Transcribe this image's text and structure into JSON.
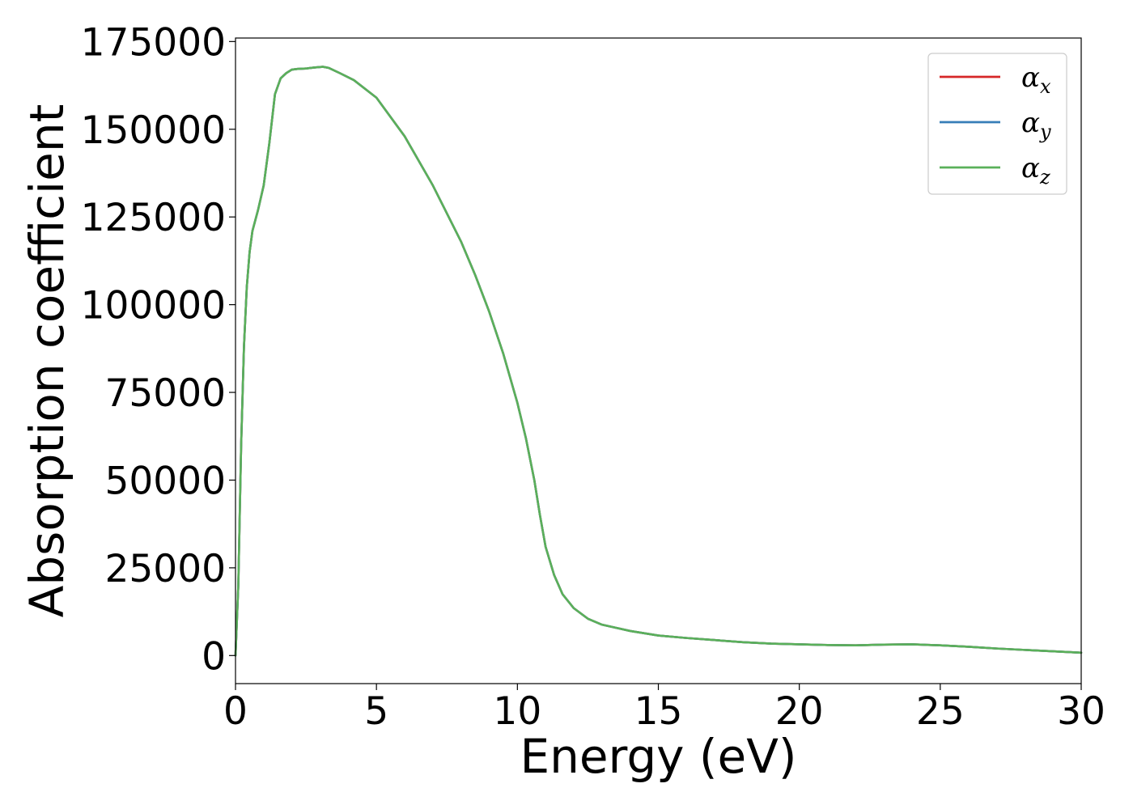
{
  "chart_data": {
    "type": "line",
    "title": "",
    "xlabel": "Energy (eV)",
    "ylabel": "Absorption coefficient",
    "xlim": [
      0,
      30
    ],
    "ylim": [
      -8000,
      176000
    ],
    "xticks": [
      0,
      5,
      10,
      15,
      20,
      25,
      30
    ],
    "yticks": [
      0,
      25000,
      50000,
      75000,
      100000,
      125000,
      150000,
      175000
    ],
    "legend": "top-right",
    "grid": false,
    "colors": {
      "alpha_x": "#d62728",
      "alpha_y": "#377eb8",
      "alpha_z": "#5ab05a"
    },
    "x": [
      0,
      0.1,
      0.2,
      0.3,
      0.4,
      0.5,
      0.6,
      0.8,
      1.0,
      1.2,
      1.4,
      1.6,
      1.8,
      2.0,
      2.2,
      2.5,
      2.8,
      3.1,
      3.3,
      3.7,
      4.2,
      5.0,
      6.0,
      7.0,
      8.0,
      8.5,
      9.0,
      9.5,
      10.0,
      10.3,
      10.6,
      10.8,
      11.0,
      11.3,
      11.6,
      12.0,
      12.5,
      13.0,
      14.0,
      15.0,
      16.0,
      17.0,
      18.0,
      19.0,
      20.0,
      21.0,
      22.0,
      23.0,
      24.0,
      25.0,
      26.0,
      27.0,
      28.0,
      29.0,
      30.0
    ],
    "series": [
      {
        "name": "α_x",
        "values": [
          0,
          20000,
          60000,
          88000,
          105000,
          115000,
          121000,
          127000,
          134000,
          146000,
          160000,
          164500,
          166000,
          167000,
          167200,
          167300,
          167600,
          167800,
          167500,
          166000,
          164000,
          159000,
          148000,
          134000,
          118000,
          108500,
          98000,
          86000,
          72000,
          62000,
          50000,
          40000,
          31000,
          23000,
          17500,
          13500,
          10500,
          8800,
          7000,
          5700,
          5000,
          4400,
          3800,
          3400,
          3200,
          3000,
          2900,
          3100,
          3200,
          2900,
          2500,
          2000,
          1600,
          1200,
          800
        ]
      },
      {
        "name": "α_y",
        "values": [
          0,
          20000,
          60000,
          88000,
          105000,
          115000,
          121000,
          127000,
          134000,
          146000,
          160000,
          164500,
          166000,
          167000,
          167200,
          167300,
          167600,
          167800,
          167500,
          166000,
          164000,
          159000,
          148000,
          134000,
          118000,
          108500,
          98000,
          86000,
          72000,
          62000,
          50000,
          40000,
          31000,
          23000,
          17500,
          13500,
          10500,
          8800,
          7000,
          5700,
          5000,
          4400,
          3800,
          3400,
          3200,
          3000,
          2900,
          3100,
          3200,
          2900,
          2500,
          2000,
          1600,
          1200,
          800
        ]
      },
      {
        "name": "α_z",
        "values": [
          0,
          20000,
          60000,
          88000,
          105000,
          115000,
          121000,
          127000,
          134000,
          146000,
          160000,
          164500,
          166000,
          167000,
          167200,
          167300,
          167600,
          167800,
          167500,
          166000,
          164000,
          159000,
          148000,
          134000,
          118000,
          108500,
          98000,
          86000,
          72000,
          62000,
          50000,
          40000,
          31000,
          23000,
          17500,
          13500,
          10500,
          8800,
          7000,
          5700,
          5000,
          4400,
          3800,
          3400,
          3200,
          3000,
          2900,
          3100,
          3200,
          2900,
          2500,
          2000,
          1600,
          1200,
          800
        ]
      }
    ],
    "legend_entries": [
      {
        "symbol": "α",
        "sub": "x"
      },
      {
        "symbol": "α",
        "sub": "y"
      },
      {
        "symbol": "α",
        "sub": "z"
      }
    ]
  }
}
